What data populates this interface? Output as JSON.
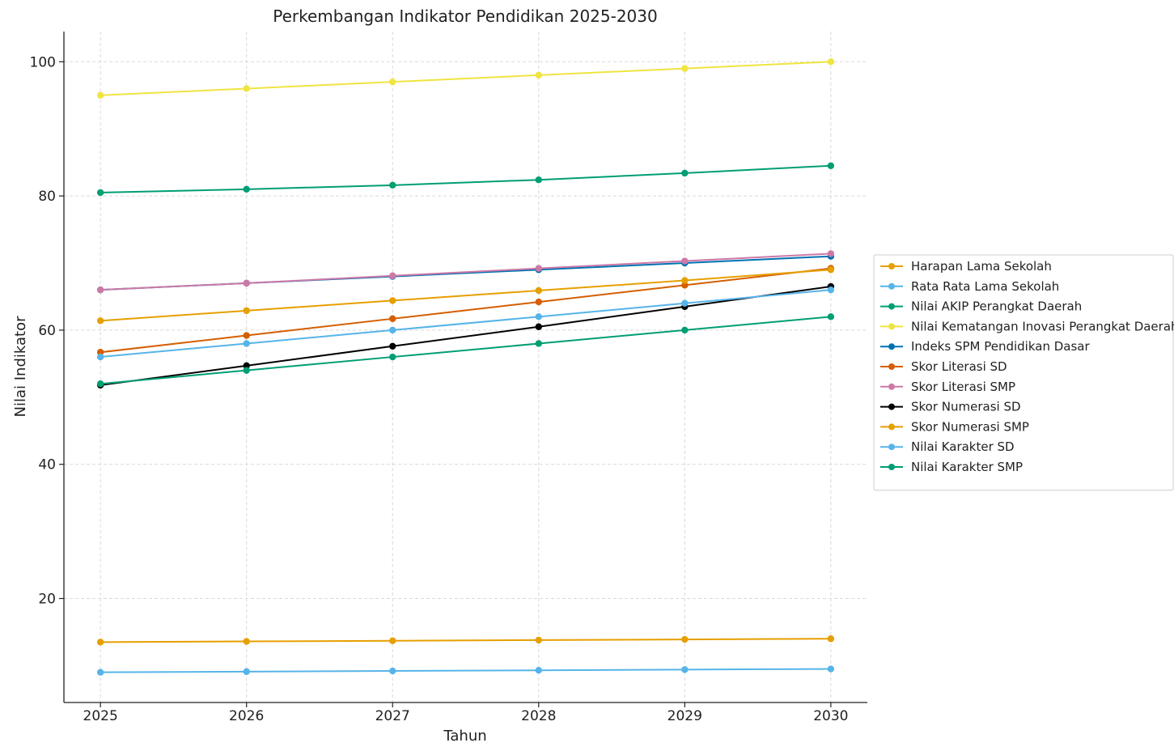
{
  "chart_data": {
    "type": "line",
    "title": "Perkembangan Indikator Pendidikan 2025-2030",
    "xlabel": "Tahun",
    "ylabel": "Nilai Indikator",
    "x": [
      2025,
      2026,
      2027,
      2028,
      2029,
      2030
    ],
    "x_tick_labels": [
      "2025",
      "2026",
      "2027",
      "2028",
      "2029",
      "2030"
    ],
    "y_ticks": [
      20,
      40,
      60,
      80,
      100
    ],
    "y_tick_labels": [
      "20",
      "40",
      "60",
      "80",
      "100"
    ],
    "xlim": [
      2024.75,
      2030.25
    ],
    "ylim": [
      4.5,
      104.5
    ],
    "grid": true,
    "legend_position": "right",
    "series": [
      {
        "name": "Harapan Lama Sekolah",
        "color": "#E69F00",
        "values": [
          13.5,
          13.6,
          13.7,
          13.8,
          13.9,
          14.0
        ]
      },
      {
        "name": "Rata Rata Lama Sekolah",
        "color": "#56B4E9",
        "values": [
          9.0,
          9.1,
          9.2,
          9.3,
          9.4,
          9.5
        ]
      },
      {
        "name": "Nilai AKIP Perangkat Daerah",
        "color": "#009E73",
        "values": [
          80.5,
          81.0,
          81.6,
          82.4,
          83.4,
          84.5
        ]
      },
      {
        "name": "Nilai Kematangan Inovasi Perangkat Daerah",
        "color": "#F0E442",
        "values": [
          95,
          96,
          97,
          98,
          99,
          100
        ]
      },
      {
        "name": "Indeks SPM Pendidikan Dasar",
        "color": "#0072B2",
        "values": [
          66,
          67,
          68,
          69,
          70,
          71
        ]
      },
      {
        "name": "Skor Literasi SD",
        "color": "#D55E00",
        "values": [
          56.7,
          59.2,
          61.7,
          64.2,
          66.7,
          69.2
        ]
      },
      {
        "name": "Skor Literasi SMP",
        "color": "#CC79A7",
        "values": [
          66.0,
          67.0,
          68.1,
          69.2,
          70.3,
          71.4
        ]
      },
      {
        "name": "Skor Numerasi SD",
        "color": "#000000",
        "values": [
          51.8,
          54.7,
          57.6,
          60.5,
          63.5,
          66.5
        ]
      },
      {
        "name": "Skor Numerasi SMP",
        "color": "#E69F00",
        "values": [
          61.4,
          62.9,
          64.4,
          65.9,
          67.4,
          69.0
        ]
      },
      {
        "name": "Nilai Karakter SD",
        "color": "#56B4E9",
        "values": [
          56,
          58,
          60,
          62,
          64,
          66
        ]
      },
      {
        "name": "Nilai Karakter SMP",
        "color": "#009E73",
        "values": [
          52,
          54,
          56,
          58,
          60,
          62
        ]
      }
    ]
  }
}
